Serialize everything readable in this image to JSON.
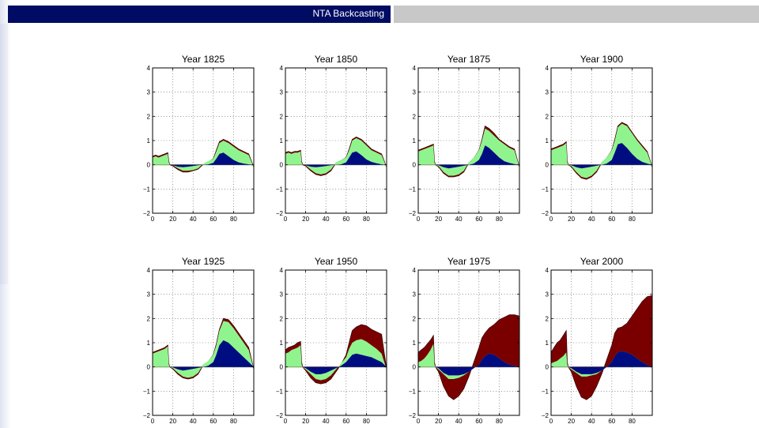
{
  "header": {
    "title": "NTA Backcasting"
  },
  "colors": {
    "header_bg": "#000b63",
    "header_right": "#c8c8c8",
    "blue": "#000d80",
    "green": "#90f48e",
    "red": "#7a0000"
  },
  "chart_data": {
    "type": "area",
    "layout": "grid 2 rows x 4 columns",
    "xlim": [
      0,
      100
    ],
    "ylim": [
      -2,
      4
    ],
    "xticks": [
      0,
      20,
      40,
      60,
      80
    ],
    "yticks": [
      -2,
      -1,
      0,
      1,
      2,
      3,
      4
    ],
    "grid": true,
    "panels": [
      {
        "title": "Year 1825",
        "x": [
          0,
          3,
          6,
          9,
          12,
          15,
          16,
          17,
          20,
          25,
          30,
          35,
          40,
          45,
          50,
          55,
          60,
          63,
          66,
          70,
          75,
          80,
          85,
          90,
          95,
          100
        ],
        "blue": [
          0,
          0,
          0,
          0,
          0,
          0,
          0,
          0,
          -0.02,
          -0.08,
          -0.1,
          -0.08,
          -0.05,
          -0.02,
          0,
          0.02,
          0.08,
          0.25,
          0.45,
          0.5,
          0.35,
          0.2,
          0.1,
          0.05,
          0.02,
          0
        ],
        "green": [
          0.3,
          0.35,
          0.3,
          0.35,
          0.4,
          0.45,
          0.1,
          0,
          -0.02,
          -0.15,
          -0.25,
          -0.25,
          -0.22,
          -0.15,
          0.05,
          0.15,
          0.25,
          0.55,
          0.9,
          1.0,
          0.9,
          0.75,
          0.6,
          0.5,
          0.4,
          -0.1
        ],
        "red": [
          0.35,
          0.4,
          0.35,
          0.4,
          0.45,
          0.5,
          0.15,
          0,
          -0.05,
          -0.2,
          -0.3,
          -0.3,
          -0.25,
          -0.18,
          0.02,
          0.12,
          0.25,
          0.6,
          0.95,
          1.05,
          0.95,
          0.8,
          0.65,
          0.55,
          0.45,
          -0.1
        ]
      },
      {
        "title": "Year 1850",
        "x": [
          0,
          3,
          6,
          9,
          12,
          15,
          16,
          17,
          20,
          25,
          30,
          35,
          40,
          45,
          50,
          55,
          60,
          63,
          66,
          70,
          75,
          80,
          85,
          90,
          95,
          100
        ],
        "blue": [
          0,
          0,
          0,
          0,
          0,
          0,
          0,
          0,
          -0.02,
          -0.08,
          -0.1,
          -0.08,
          -0.05,
          -0.02,
          0,
          0.02,
          0.1,
          0.3,
          0.5,
          0.55,
          0.4,
          0.22,
          0.12,
          0.06,
          0.02,
          0
        ],
        "green": [
          0.45,
          0.5,
          0.45,
          0.5,
          0.5,
          0.55,
          0.1,
          0,
          -0.02,
          -0.2,
          -0.35,
          -0.4,
          -0.35,
          -0.2,
          0.1,
          0.2,
          0.3,
          0.6,
          1.0,
          1.1,
          1.0,
          0.8,
          0.6,
          0.5,
          0.4,
          -0.1
        ],
        "red": [
          0.5,
          0.55,
          0.5,
          0.55,
          0.55,
          0.6,
          0.15,
          0,
          -0.05,
          -0.25,
          -0.4,
          -0.45,
          -0.4,
          -0.25,
          0.08,
          0.18,
          0.3,
          0.65,
          1.05,
          1.15,
          1.05,
          0.85,
          0.65,
          0.55,
          0.45,
          -0.1
        ]
      },
      {
        "title": "Year 1875",
        "x": [
          0,
          3,
          6,
          9,
          12,
          15,
          16,
          17,
          20,
          25,
          30,
          35,
          40,
          45,
          50,
          55,
          60,
          63,
          66,
          70,
          75,
          80,
          85,
          90,
          95,
          100
        ],
        "blue": [
          0,
          0,
          0,
          0,
          0,
          0,
          0,
          0,
          -0.02,
          -0.1,
          -0.15,
          -0.12,
          -0.08,
          -0.04,
          0,
          0.05,
          0.2,
          0.45,
          0.8,
          0.7,
          0.5,
          0.3,
          0.15,
          0.08,
          0.03,
          0
        ],
        "green": [
          0.55,
          0.6,
          0.65,
          0.7,
          0.75,
          0.8,
          0.1,
          0,
          -0.05,
          -0.3,
          -0.45,
          -0.45,
          -0.4,
          -0.25,
          0.1,
          0.3,
          0.6,
          1.0,
          1.5,
          1.4,
          1.2,
          1.0,
          0.85,
          0.7,
          0.6,
          -0.1
        ],
        "red": [
          0.6,
          0.65,
          0.7,
          0.75,
          0.8,
          0.85,
          0.15,
          0,
          -0.08,
          -0.35,
          -0.5,
          -0.5,
          -0.45,
          -0.3,
          0.08,
          0.28,
          0.6,
          1.05,
          1.6,
          1.5,
          1.3,
          1.05,
          0.9,
          0.75,
          0.65,
          -0.1
        ]
      },
      {
        "title": "Year 1900",
        "x": [
          0,
          3,
          6,
          9,
          12,
          15,
          16,
          17,
          20,
          25,
          30,
          35,
          40,
          45,
          50,
          55,
          60,
          63,
          66,
          70,
          75,
          80,
          85,
          90,
          95,
          100
        ],
        "blue": [
          0,
          0,
          0,
          0,
          0,
          0,
          0,
          0,
          -0.02,
          -0.1,
          -0.15,
          -0.12,
          -0.08,
          -0.04,
          0,
          0.05,
          0.2,
          0.5,
          0.85,
          0.9,
          0.7,
          0.45,
          0.25,
          0.12,
          0.05,
          0
        ],
        "green": [
          0.6,
          0.65,
          0.7,
          0.75,
          0.8,
          0.9,
          0.1,
          0,
          -0.05,
          -0.3,
          -0.5,
          -0.55,
          -0.45,
          -0.25,
          0.1,
          0.3,
          0.6,
          1.0,
          1.55,
          1.7,
          1.6,
          1.3,
          1.0,
          0.75,
          0.5,
          -0.1
        ],
        "red": [
          0.65,
          0.7,
          0.75,
          0.8,
          0.85,
          0.95,
          0.15,
          0,
          -0.08,
          -0.35,
          -0.55,
          -0.6,
          -0.5,
          -0.3,
          0.08,
          0.28,
          0.6,
          1.05,
          1.6,
          1.75,
          1.65,
          1.35,
          1.05,
          0.8,
          0.55,
          -0.1
        ]
      },
      {
        "title": "Year 1925",
        "x": [
          0,
          3,
          6,
          9,
          12,
          15,
          16,
          17,
          20,
          25,
          30,
          35,
          40,
          45,
          50,
          55,
          60,
          63,
          66,
          70,
          75,
          80,
          85,
          90,
          95,
          100
        ],
        "blue": [
          0,
          0,
          0,
          0,
          0,
          0,
          0,
          0,
          -0.02,
          -0.1,
          -0.15,
          -0.12,
          -0.08,
          -0.04,
          0,
          0.05,
          0.2,
          0.5,
          0.9,
          1.1,
          1.0,
          0.8,
          0.6,
          0.4,
          0.2,
          0
        ],
        "green": [
          0.55,
          0.6,
          0.65,
          0.7,
          0.75,
          0.85,
          0.1,
          0,
          -0.05,
          -0.25,
          -0.4,
          -0.45,
          -0.4,
          -0.25,
          0.1,
          0.25,
          0.5,
          0.9,
          1.5,
          1.9,
          1.85,
          1.6,
          1.3,
          1.0,
          0.7,
          -0.1
        ],
        "red": [
          0.6,
          0.65,
          0.7,
          0.75,
          0.8,
          0.9,
          0.15,
          0,
          -0.08,
          -0.3,
          -0.45,
          -0.5,
          -0.45,
          -0.3,
          0.08,
          0.22,
          0.5,
          0.95,
          1.55,
          2.0,
          1.95,
          1.7,
          1.4,
          1.1,
          0.8,
          -0.1
        ]
      },
      {
        "title": "Year 1950",
        "x": [
          0,
          3,
          6,
          9,
          12,
          15,
          16,
          17,
          20,
          25,
          30,
          35,
          40,
          45,
          50,
          55,
          60,
          63,
          66,
          70,
          75,
          80,
          85,
          90,
          95,
          100
        ],
        "blue": [
          0,
          0,
          0,
          0,
          0,
          0,
          0,
          0,
          -0.05,
          -0.2,
          -0.3,
          -0.3,
          -0.25,
          -0.15,
          -0.05,
          0.05,
          0.2,
          0.35,
          0.5,
          0.55,
          0.5,
          0.45,
          0.4,
          0.3,
          0.2,
          0
        ],
        "green": [
          0.55,
          0.6,
          0.7,
          0.75,
          0.8,
          0.9,
          0.1,
          0,
          -0.1,
          -0.3,
          -0.5,
          -0.55,
          -0.5,
          -0.35,
          -0.1,
          0.15,
          0.4,
          0.75,
          1.0,
          1.1,
          1.15,
          1.05,
          0.9,
          0.75,
          0.55,
          -0.1
        ],
        "red": [
          0.7,
          0.8,
          0.85,
          0.9,
          1.0,
          1.05,
          0.2,
          0,
          -0.15,
          -0.45,
          -0.65,
          -0.7,
          -0.65,
          -0.5,
          -0.2,
          0.1,
          0.5,
          1.0,
          1.5,
          1.65,
          1.75,
          1.7,
          1.55,
          1.45,
          1.35,
          -0.1
        ]
      },
      {
        "title": "Year 1975",
        "x": [
          0,
          3,
          6,
          9,
          12,
          15,
          16,
          17,
          20,
          25,
          30,
          35,
          40,
          45,
          50,
          55,
          60,
          63,
          66,
          70,
          75,
          80,
          85,
          90,
          95,
          100
        ],
        "blue": [
          0,
          0,
          0,
          0,
          0,
          0,
          0,
          0,
          -0.05,
          -0.25,
          -0.35,
          -0.35,
          -0.35,
          -0.3,
          -0.2,
          -0.05,
          0.1,
          0.3,
          0.45,
          0.55,
          0.5,
          0.35,
          0.2,
          0.1,
          0.05,
          0
        ],
        "green": [
          0.2,
          0.25,
          0.35,
          0.5,
          0.7,
          0.95,
          0.1,
          0,
          -0.1,
          -0.3,
          -0.5,
          -0.5,
          -0.45,
          -0.35,
          -0.2,
          -0.05,
          0.1,
          0.3,
          0.45,
          0.55,
          0.5,
          0.35,
          0.2,
          0.1,
          0.05,
          0
        ],
        "red": [
          0.6,
          0.7,
          0.8,
          0.95,
          1.1,
          1.3,
          0.2,
          0,
          -0.2,
          -0.8,
          -1.2,
          -1.35,
          -1.2,
          -0.9,
          -0.4,
          0.2,
          0.8,
          1.2,
          1.4,
          1.6,
          1.75,
          1.95,
          2.05,
          2.15,
          2.15,
          2.1
        ]
      },
      {
        "title": "Year 2000",
        "x": [
          0,
          3,
          6,
          9,
          12,
          15,
          16,
          17,
          20,
          25,
          30,
          35,
          40,
          45,
          50,
          55,
          60,
          63,
          66,
          70,
          75,
          80,
          85,
          90,
          95,
          100
        ],
        "blue": [
          0,
          0,
          0,
          0,
          0,
          0,
          0,
          0,
          -0.05,
          -0.2,
          -0.3,
          -0.3,
          -0.3,
          -0.25,
          -0.15,
          0,
          0.2,
          0.45,
          0.6,
          0.65,
          0.6,
          0.5,
          0.35,
          0.2,
          0.08,
          0
        ],
        "green": [
          0.15,
          0.2,
          0.25,
          0.35,
          0.45,
          0.6,
          0.1,
          0,
          -0.1,
          -0.25,
          -0.4,
          -0.4,
          -0.35,
          -0.3,
          -0.15,
          0,
          0.2,
          0.45,
          0.6,
          0.65,
          0.6,
          0.5,
          0.35,
          0.2,
          0.08,
          0
        ],
        "red": [
          0.6,
          0.8,
          1.0,
          1.1,
          1.3,
          1.5,
          0.2,
          0,
          -0.2,
          -0.8,
          -1.25,
          -1.35,
          -1.2,
          -0.8,
          -0.3,
          0.3,
          0.9,
          1.4,
          1.6,
          1.65,
          1.8,
          2.1,
          2.4,
          2.7,
          2.9,
          2.95
        ]
      }
    ]
  }
}
